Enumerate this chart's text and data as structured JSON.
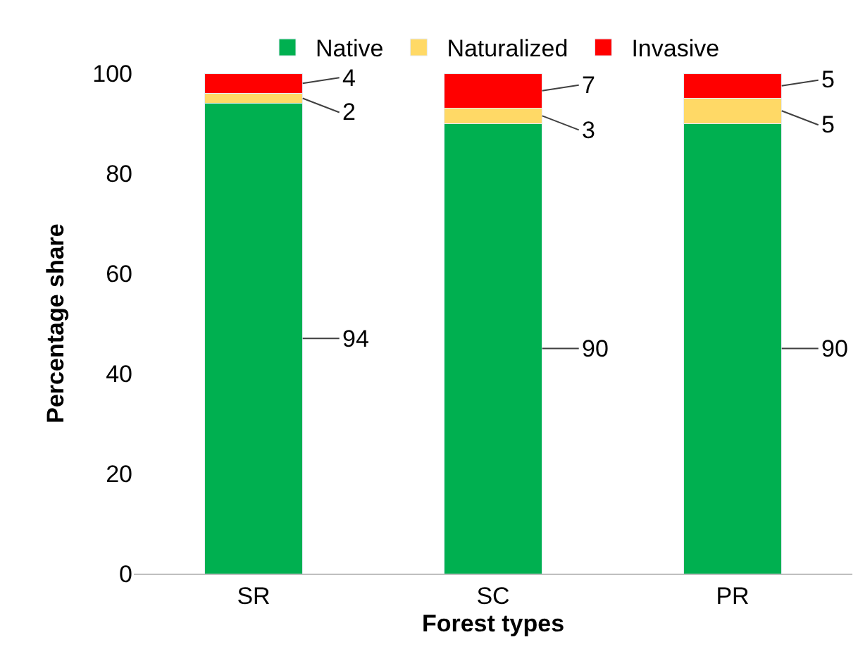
{
  "chart_data": {
    "type": "bar",
    "stacked": true,
    "xlabel": "Forest types",
    "ylabel": "Percentage share",
    "categories": [
      "SR",
      "SC",
      "PR"
    ],
    "series": [
      {
        "name": "Native",
        "color": "#00b050",
        "values": [
          94,
          90,
          90
        ]
      },
      {
        "name": "Naturalized",
        "color": "#ffd966",
        "values": [
          2,
          3,
          5
        ]
      },
      {
        "name": "Invasive",
        "color": "#ff0000",
        "values": [
          4,
          7,
          5
        ]
      }
    ],
    "ylim": [
      0,
      100
    ],
    "yticks": [
      0,
      20,
      40,
      60,
      80,
      100
    ],
    "legend": "top",
    "data_labels": true
  }
}
